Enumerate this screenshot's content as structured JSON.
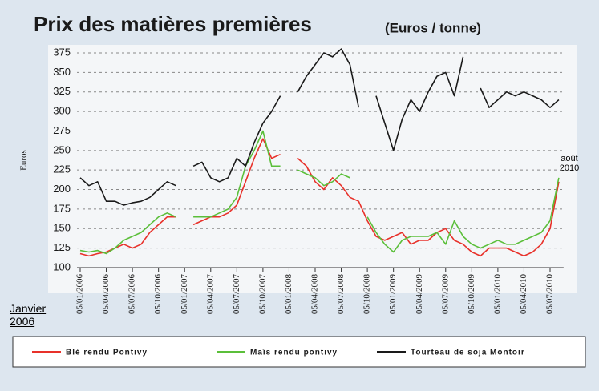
{
  "chart_data": {
    "type": "line",
    "title": "Prix des matières premières",
    "subtitle": "(Euros / tonne)",
    "y_label": "Euros",
    "annotations": [
      "août 2010",
      "Janvier 2006"
    ],
    "categories": [
      "05/01/2006",
      null,
      null,
      "05/04/2006",
      null,
      null,
      "05/07/2006",
      null,
      null,
      "05/10/2006",
      null,
      null,
      "05/01/2007",
      null,
      null,
      "05/04/2007",
      null,
      null,
      "05/07/2007",
      null,
      null,
      "05/10/2007",
      null,
      null,
      "05/01/2008",
      null,
      null,
      "05/04/2008",
      null,
      null,
      "05/07/2008",
      null,
      null,
      "05/10/2008",
      null,
      null,
      "05/01/2009",
      null,
      null,
      "05/04/2009",
      null,
      null,
      "05/07/2009",
      null,
      null,
      "05/10/2009",
      null,
      null,
      "05/01/2010",
      null,
      null,
      "05/04/2010",
      null,
      null,
      "05/07/2010",
      null
    ],
    "series": [
      {
        "name": "Blé rendu Pontivy",
        "color": "#e8312a",
        "values": [
          118,
          115,
          118,
          120,
          125,
          130,
          125,
          130,
          145,
          155,
          165,
          165,
          null,
          155,
          160,
          165,
          165,
          170,
          180,
          210,
          240,
          265,
          240,
          245,
          null,
          240,
          230,
          210,
          200,
          215,
          205,
          190,
          185,
          160,
          140,
          135,
          140,
          145,
          130,
          135,
          135,
          145,
          150,
          135,
          130,
          120,
          115,
          125,
          125,
          125,
          120,
          115,
          120,
          130,
          150,
          210
        ]
      },
      {
        "name": "Maïs rendu pontivy",
        "color": "#5bbf3a",
        "values": [
          122,
          120,
          122,
          118,
          125,
          135,
          140,
          145,
          155,
          165,
          170,
          165,
          null,
          165,
          165,
          165,
          170,
          175,
          190,
          230,
          250,
          275,
          230,
          230,
          null,
          225,
          220,
          215,
          205,
          210,
          220,
          215,
          null,
          165,
          145,
          130,
          120,
          135,
          140,
          140,
          140,
          145,
          130,
          160,
          140,
          130,
          125,
          130,
          135,
          130,
          130,
          135,
          140,
          145,
          160,
          215
        ]
      },
      {
        "name": "Tourteau de soja Montoir",
        "color": "#1a1a1a",
        "values": [
          215,
          205,
          210,
          185,
          185,
          180,
          183,
          185,
          190,
          200,
          210,
          205,
          null,
          230,
          235,
          215,
          210,
          215,
          240,
          230,
          260,
          285,
          300,
          320,
          null,
          325,
          345,
          360,
          375,
          370,
          380,
          360,
          305,
          null,
          320,
          285,
          250,
          290,
          315,
          300,
          325,
          345,
          350,
          320,
          370,
          null,
          330,
          305,
          315,
          325,
          320,
          325,
          320,
          315,
          305,
          315
        ]
      }
    ],
    "ylim": [
      100,
      375
    ],
    "yticks": [
      100,
      125,
      150,
      175,
      200,
      225,
      250,
      275,
      300,
      325,
      350,
      375
    ],
    "grid": true,
    "legend": "bottom"
  }
}
